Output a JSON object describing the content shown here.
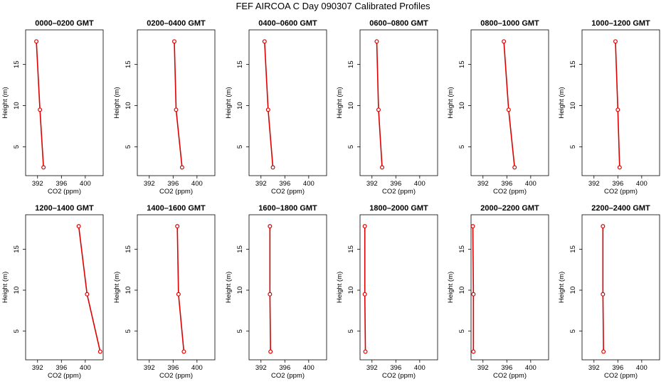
{
  "title": "FEF AIRCOA C  Day 090307  Calibrated Profiles",
  "colors": {
    "profile_line": "#dd0000",
    "point_marker": "#dd0000",
    "axes": "#000000"
  },
  "chart_data": [
    {
      "type": "line",
      "title": "0000–0200 GMT",
      "xlabel": "CO2 (ppm)",
      "ylabel": "Height (m)",
      "xlim": [
        390,
        403
      ],
      "ylim": [
        1.5,
        19.2
      ],
      "xticks": [
        392,
        396,
        400
      ],
      "yticks": [
        5,
        10,
        15
      ],
      "xtick_labels": [
        "392",
        "396",
        "400"
      ],
      "ytick_labels": [
        "5",
        "10",
        "15"
      ],
      "series": [
        {
          "points": [
            {
              "x": 391.8,
              "y": 17.8
            },
            {
              "x": 392.4,
              "y": 9.5
            },
            {
              "x": 393.0,
              "y": 2.5
            }
          ]
        }
      ]
    },
    {
      "type": "line",
      "title": "0200–0400 GMT",
      "xlabel": "CO2 (ppm)",
      "ylabel": "Height (m)",
      "xlim": [
        390,
        403
      ],
      "ylim": [
        1.5,
        19.2
      ],
      "xticks": [
        392,
        396,
        400
      ],
      "yticks": [
        5,
        10,
        15
      ],
      "xtick_labels": [
        "392",
        "396",
        "400"
      ],
      "ytick_labels": [
        "5",
        "10",
        "15"
      ],
      "series": [
        {
          "points": [
            {
              "x": 396.2,
              "y": 17.8
            },
            {
              "x": 396.5,
              "y": 9.5
            },
            {
              "x": 397.5,
              "y": 2.5
            }
          ]
        }
      ]
    },
    {
      "type": "line",
      "title": "0400–0600 GMT",
      "xlabel": "CO2 (ppm)",
      "ylabel": "Height (m)",
      "xlim": [
        390,
        403
      ],
      "ylim": [
        1.5,
        19.2
      ],
      "xticks": [
        392,
        396,
        400
      ],
      "yticks": [
        5,
        10,
        15
      ],
      "xtick_labels": [
        "392",
        "396",
        "400"
      ],
      "ytick_labels": [
        "5",
        "10",
        "15"
      ],
      "series": [
        {
          "points": [
            {
              "x": 392.6,
              "y": 17.8
            },
            {
              "x": 393.2,
              "y": 9.5
            },
            {
              "x": 394.0,
              "y": 2.5
            }
          ]
        }
      ]
    },
    {
      "type": "line",
      "title": "0600–0800 GMT",
      "xlabel": "CO2 (ppm)",
      "ylabel": "Height (m)",
      "xlim": [
        390,
        403
      ],
      "ylim": [
        1.5,
        19.2
      ],
      "xticks": [
        392,
        396,
        400
      ],
      "yticks": [
        5,
        10,
        15
      ],
      "xtick_labels": [
        "392",
        "396",
        "400"
      ],
      "ytick_labels": [
        "5",
        "10",
        "15"
      ],
      "series": [
        {
          "points": [
            {
              "x": 392.8,
              "y": 17.8
            },
            {
              "x": 393.1,
              "y": 9.5
            },
            {
              "x": 393.7,
              "y": 2.5
            }
          ]
        }
      ]
    },
    {
      "type": "line",
      "title": "0800–1000 GMT",
      "xlabel": "CO2 (ppm)",
      "ylabel": "Height (m)",
      "xlim": [
        390,
        403
      ],
      "ylim": [
        1.5,
        19.2
      ],
      "xticks": [
        392,
        396,
        400
      ],
      "yticks": [
        5,
        10,
        15
      ],
      "xtick_labels": [
        "392",
        "396",
        "400"
      ],
      "ytick_labels": [
        "5",
        "10",
        "15"
      ],
      "series": [
        {
          "points": [
            {
              "x": 395.5,
              "y": 17.8
            },
            {
              "x": 396.3,
              "y": 9.5
            },
            {
              "x": 397.3,
              "y": 2.5
            }
          ]
        }
      ]
    },
    {
      "type": "line",
      "title": "1000–1200 GMT",
      "xlabel": "CO2 (ppm)",
      "ylabel": "Height (m)",
      "xlim": [
        390,
        403
      ],
      "ylim": [
        1.5,
        19.2
      ],
      "xticks": [
        392,
        396,
        400
      ],
      "yticks": [
        5,
        10,
        15
      ],
      "xtick_labels": [
        "392",
        "396",
        "400"
      ],
      "ytick_labels": [
        "5",
        "10",
        "15"
      ],
      "series": [
        {
          "points": [
            {
              "x": 395.6,
              "y": 17.8
            },
            {
              "x": 396.0,
              "y": 9.5
            },
            {
              "x": 396.3,
              "y": 2.5
            }
          ]
        }
      ]
    },
    {
      "type": "line",
      "title": "1200–1400 GMT",
      "xlabel": "CO2 (ppm)",
      "ylabel": "Height (m)",
      "xlim": [
        390,
        403
      ],
      "ylim": [
        1.5,
        19.2
      ],
      "xticks": [
        392,
        396,
        400
      ],
      "yticks": [
        5,
        10,
        15
      ],
      "xtick_labels": [
        "392",
        "396",
        "400"
      ],
      "ytick_labels": [
        "5",
        "10",
        "15"
      ],
      "series": [
        {
          "points": [
            {
              "x": 398.9,
              "y": 17.8
            },
            {
              "x": 400.3,
              "y": 9.5
            },
            {
              "x": 402.5,
              "y": 2.5
            }
          ]
        }
      ]
    },
    {
      "type": "line",
      "title": "1400–1600 GMT",
      "xlabel": "CO2 (ppm)",
      "ylabel": "Height (m)",
      "xlim": [
        390,
        403
      ],
      "ylim": [
        1.5,
        19.2
      ],
      "xticks": [
        392,
        396,
        400
      ],
      "yticks": [
        5,
        10,
        15
      ],
      "xtick_labels": [
        "392",
        "396",
        "400"
      ],
      "ytick_labels": [
        "5",
        "10",
        "15"
      ],
      "series": [
        {
          "points": [
            {
              "x": 396.7,
              "y": 17.8
            },
            {
              "x": 396.9,
              "y": 9.5
            },
            {
              "x": 397.8,
              "y": 2.5
            }
          ]
        }
      ]
    },
    {
      "type": "line",
      "title": "1600–1800 GMT",
      "xlabel": "CO2 (ppm)",
      "ylabel": "Height (m)",
      "xlim": [
        390,
        403
      ],
      "ylim": [
        1.5,
        19.2
      ],
      "xticks": [
        392,
        396,
        400
      ],
      "yticks": [
        5,
        10,
        15
      ],
      "xtick_labels": [
        "392",
        "396",
        "400"
      ],
      "ytick_labels": [
        "5",
        "10",
        "15"
      ],
      "series": [
        {
          "points": [
            {
              "x": 393.5,
              "y": 17.8
            },
            {
              "x": 393.5,
              "y": 9.5
            },
            {
              "x": 393.6,
              "y": 2.5
            }
          ]
        }
      ]
    },
    {
      "type": "line",
      "title": "1800–2000 GMT",
      "xlabel": "CO2 (ppm)",
      "ylabel": "Height (m)",
      "xlim": [
        390,
        403
      ],
      "ylim": [
        1.5,
        19.2
      ],
      "xticks": [
        392,
        396,
        400
      ],
      "yticks": [
        5,
        10,
        15
      ],
      "xtick_labels": [
        "392",
        "396",
        "400"
      ],
      "ytick_labels": [
        "5",
        "10",
        "15"
      ],
      "series": [
        {
          "points": [
            {
              "x": 390.8,
              "y": 17.8
            },
            {
              "x": 390.8,
              "y": 9.5
            },
            {
              "x": 390.9,
              "y": 2.5
            }
          ]
        }
      ]
    },
    {
      "type": "line",
      "title": "2000–2200 GMT",
      "xlabel": "CO2 (ppm)",
      "ylabel": "Height (m)",
      "xlim": [
        390,
        403
      ],
      "ylim": [
        1.5,
        19.2
      ],
      "xticks": [
        392,
        396,
        400
      ],
      "yticks": [
        5,
        10,
        15
      ],
      "xtick_labels": [
        "392",
        "396",
        "400"
      ],
      "ytick_labels": [
        "5",
        "10",
        "15"
      ],
      "series": [
        {
          "points": [
            {
              "x": 390.3,
              "y": 17.8
            },
            {
              "x": 390.4,
              "y": 9.5
            },
            {
              "x": 390.4,
              "y": 2.5
            }
          ]
        }
      ]
    },
    {
      "type": "line",
      "title": "2200–2400 GMT",
      "xlabel": "CO2 (ppm)",
      "ylabel": "Height (m)",
      "xlim": [
        390,
        403
      ],
      "ylim": [
        1.5,
        19.2
      ],
      "xticks": [
        392,
        396,
        400
      ],
      "yticks": [
        5,
        10,
        15
      ],
      "xtick_labels": [
        "392",
        "396",
        "400"
      ],
      "ytick_labels": [
        "5",
        "10",
        "15"
      ],
      "series": [
        {
          "points": [
            {
              "x": 393.5,
              "y": 17.8
            },
            {
              "x": 393.5,
              "y": 9.5
            },
            {
              "x": 393.6,
              "y": 2.5
            }
          ]
        }
      ]
    }
  ]
}
